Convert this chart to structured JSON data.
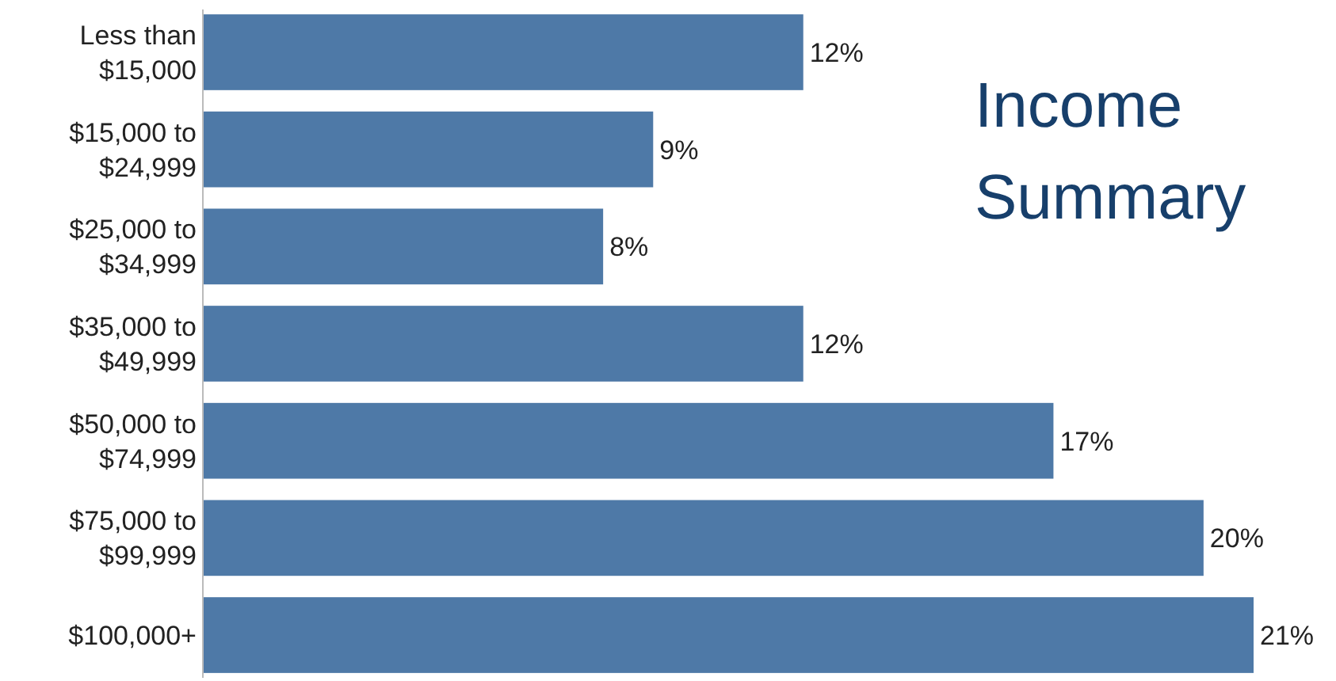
{
  "chart_data": {
    "type": "bar",
    "orientation": "horizontal",
    "title": "Income Summary",
    "categories": [
      "Less than $15,000",
      "$15,000 to $24,999",
      "$25,000 to $34,999",
      "$35,000 to $49,999",
      "$50,000 to $74,999",
      "$75,000 to $99,999",
      "$100,000+"
    ],
    "values": [
      12,
      9,
      8,
      12,
      17,
      20,
      21
    ],
    "color": "#4e79a7",
    "data_labels": true,
    "value_labels": [
      "12%",
      "9%",
      "8%",
      "12%",
      "17%",
      "20%",
      "21%"
    ]
  }
}
